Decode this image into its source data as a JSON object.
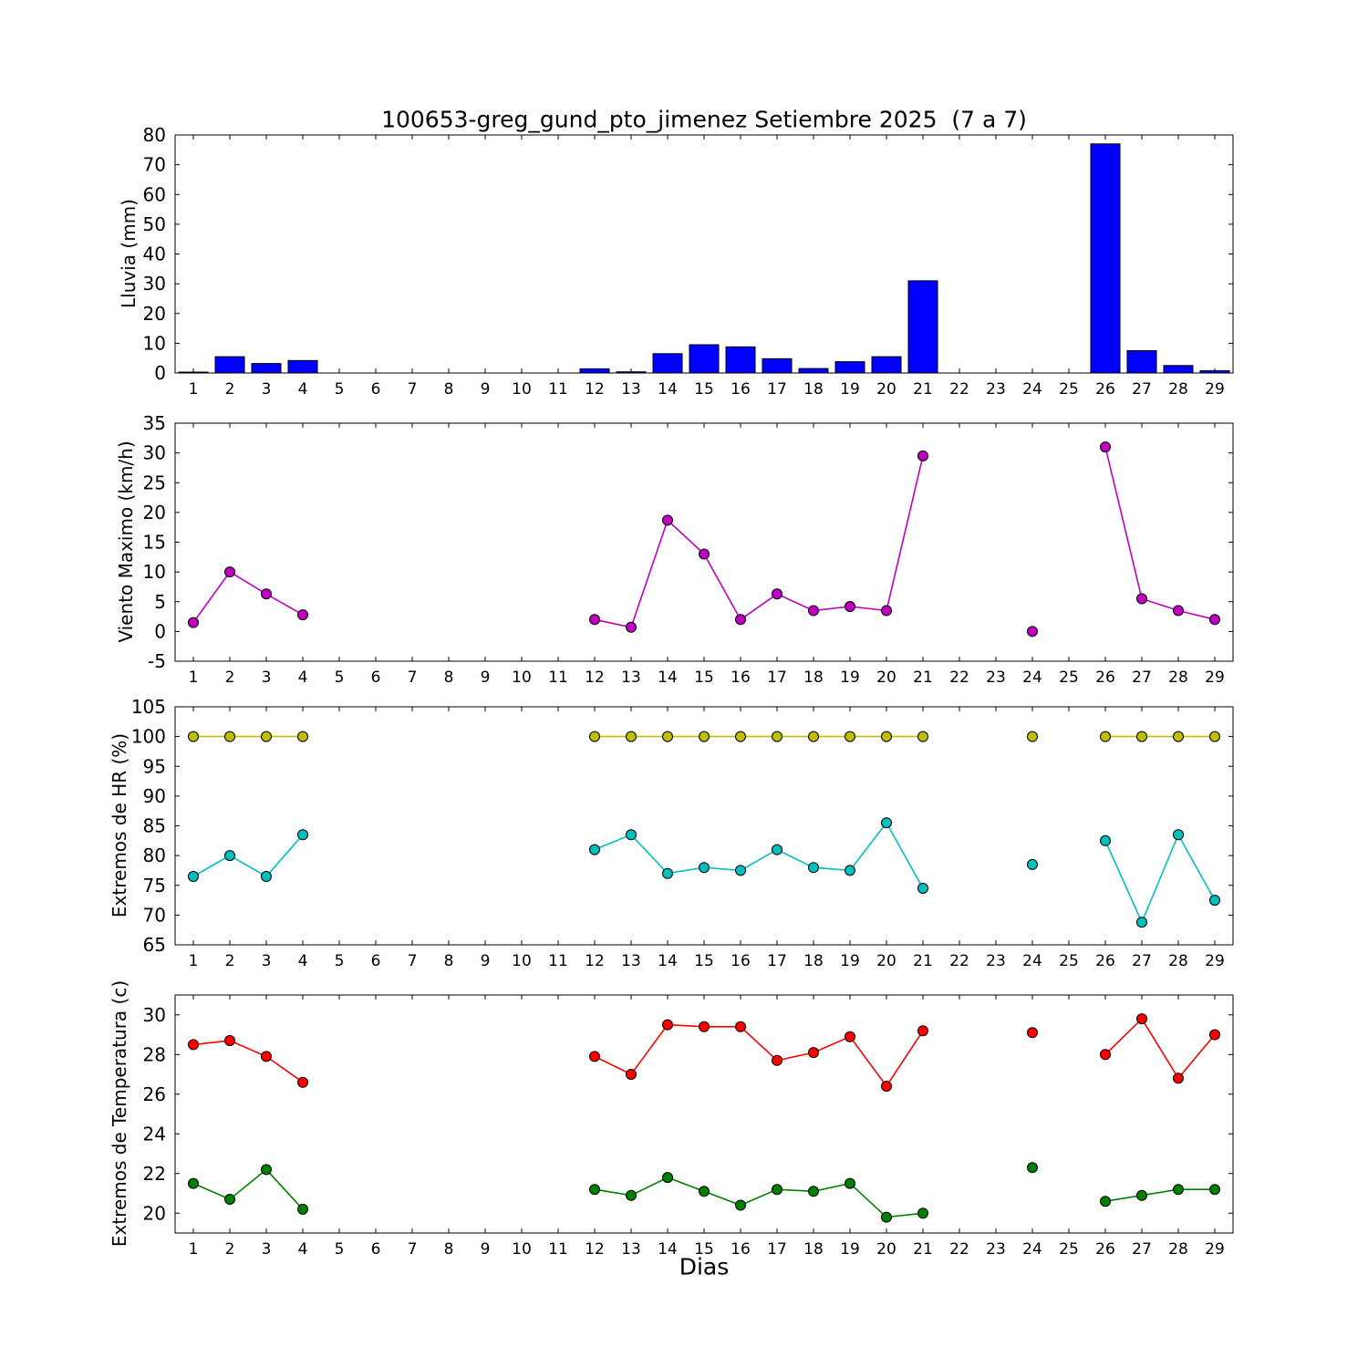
{
  "figure": {
    "title": "100653-greg_gund_pto_jimenez Setiembre 2025  (7 a 7)",
    "xlabel": "Dias",
    "xticks": [
      1,
      2,
      3,
      4,
      5,
      6,
      7,
      8,
      9,
      10,
      11,
      12,
      13,
      14,
      15,
      16,
      17,
      18,
      19,
      20,
      21,
      22,
      23,
      24,
      25,
      26,
      27,
      28,
      29
    ]
  },
  "chart_data": [
    {
      "type": "bar",
      "ylabel": "Lluvia (mm)",
      "ylim": [
        0,
        80
      ],
      "yticks": [
        0,
        10,
        20,
        30,
        40,
        50,
        60,
        70,
        80
      ],
      "xlim": [
        0.5,
        29.5
      ],
      "grid": false,
      "series": [
        {
          "name": "lluvia",
          "color": "#0000ff",
          "x": [
            1,
            2,
            3,
            4,
            12,
            13,
            14,
            15,
            16,
            17,
            18,
            19,
            20,
            21,
            24,
            26,
            27,
            28,
            29
          ],
          "values": [
            0.3,
            5.5,
            3.2,
            4.2,
            1.4,
            0.4,
            6.5,
            9.5,
            8.8,
            4.8,
            1.5,
            3.8,
            5.5,
            31.0,
            0.0,
            77.0,
            7.5,
            2.5,
            0.8
          ]
        }
      ]
    },
    {
      "type": "line",
      "ylabel": "Viento Maximo (km/h)",
      "ylim": [
        -5,
        35
      ],
      "yticks": [
        -5,
        0,
        5,
        10,
        15,
        20,
        25,
        30,
        35
      ],
      "xlim": [
        0.5,
        29.5
      ],
      "grid": false,
      "series": [
        {
          "name": "viento-maximo",
          "color": "#bf00bf",
          "x": [
            1,
            2,
            3,
            4,
            12,
            13,
            14,
            15,
            16,
            17,
            18,
            19,
            20,
            21,
            24,
            26,
            27,
            28,
            29
          ],
          "values": [
            1.5,
            10.0,
            6.3,
            2.8,
            2.0,
            0.7,
            18.7,
            13.0,
            2.0,
            6.3,
            3.5,
            4.2,
            3.5,
            29.5,
            0.0,
            31.0,
            5.5,
            3.5,
            2.0
          ]
        }
      ]
    },
    {
      "type": "line",
      "ylabel": "Extremos de HR (%)",
      "ylim": [
        65,
        105
      ],
      "yticks": [
        65,
        70,
        75,
        80,
        85,
        90,
        95,
        100,
        105
      ],
      "xlim": [
        0.5,
        29.5
      ],
      "grid": false,
      "series": [
        {
          "name": "hr-maxima",
          "color": "#bfbf00",
          "x": [
            1,
            2,
            3,
            4,
            12,
            13,
            14,
            15,
            16,
            17,
            18,
            19,
            20,
            21,
            24,
            26,
            27,
            28,
            29
          ],
          "values": [
            100,
            100,
            100,
            100,
            100,
            100,
            100,
            100,
            100,
            100,
            100,
            100,
            100,
            100,
            100,
            100,
            100,
            100,
            100
          ]
        },
        {
          "name": "hr-minima",
          "color": "#00bfbf",
          "x": [
            1,
            2,
            3,
            4,
            12,
            13,
            14,
            15,
            16,
            17,
            18,
            19,
            20,
            21,
            24,
            26,
            27,
            28,
            29
          ],
          "values": [
            76.5,
            80.0,
            76.5,
            83.5,
            81.0,
            83.5,
            77.0,
            78.0,
            77.5,
            81.0,
            78.0,
            77.5,
            85.5,
            74.5,
            78.5,
            82.5,
            68.8,
            83.5,
            72.5
          ]
        }
      ]
    },
    {
      "type": "line",
      "ylabel": "Extremos de Temperatura (c)",
      "ylim": [
        19,
        31
      ],
      "yticks": [
        20,
        22,
        24,
        26,
        28,
        30
      ],
      "xlim": [
        0.5,
        29.5
      ],
      "grid": false,
      "series": [
        {
          "name": "temperatura-maxima",
          "color": "#ff0000",
          "x": [
            1,
            2,
            3,
            4,
            12,
            13,
            14,
            15,
            16,
            17,
            18,
            19,
            20,
            21,
            24,
            26,
            27,
            28,
            29
          ],
          "values": [
            28.5,
            28.7,
            27.9,
            26.6,
            27.9,
            27.0,
            29.5,
            29.4,
            29.4,
            27.7,
            28.1,
            28.9,
            26.4,
            29.2,
            29.1,
            28.0,
            29.8,
            26.8,
            29.0
          ]
        },
        {
          "name": "temperatura-minima",
          "color": "#008000",
          "x": [
            1,
            2,
            3,
            4,
            12,
            13,
            14,
            15,
            16,
            17,
            18,
            19,
            20,
            21,
            24,
            26,
            27,
            28,
            29
          ],
          "values": [
            21.5,
            20.7,
            22.2,
            20.2,
            21.2,
            20.9,
            21.8,
            21.1,
            20.4,
            21.2,
            21.1,
            21.5,
            19.8,
            20.0,
            22.3,
            20.6,
            20.9,
            21.2,
            21.2
          ]
        }
      ]
    }
  ]
}
